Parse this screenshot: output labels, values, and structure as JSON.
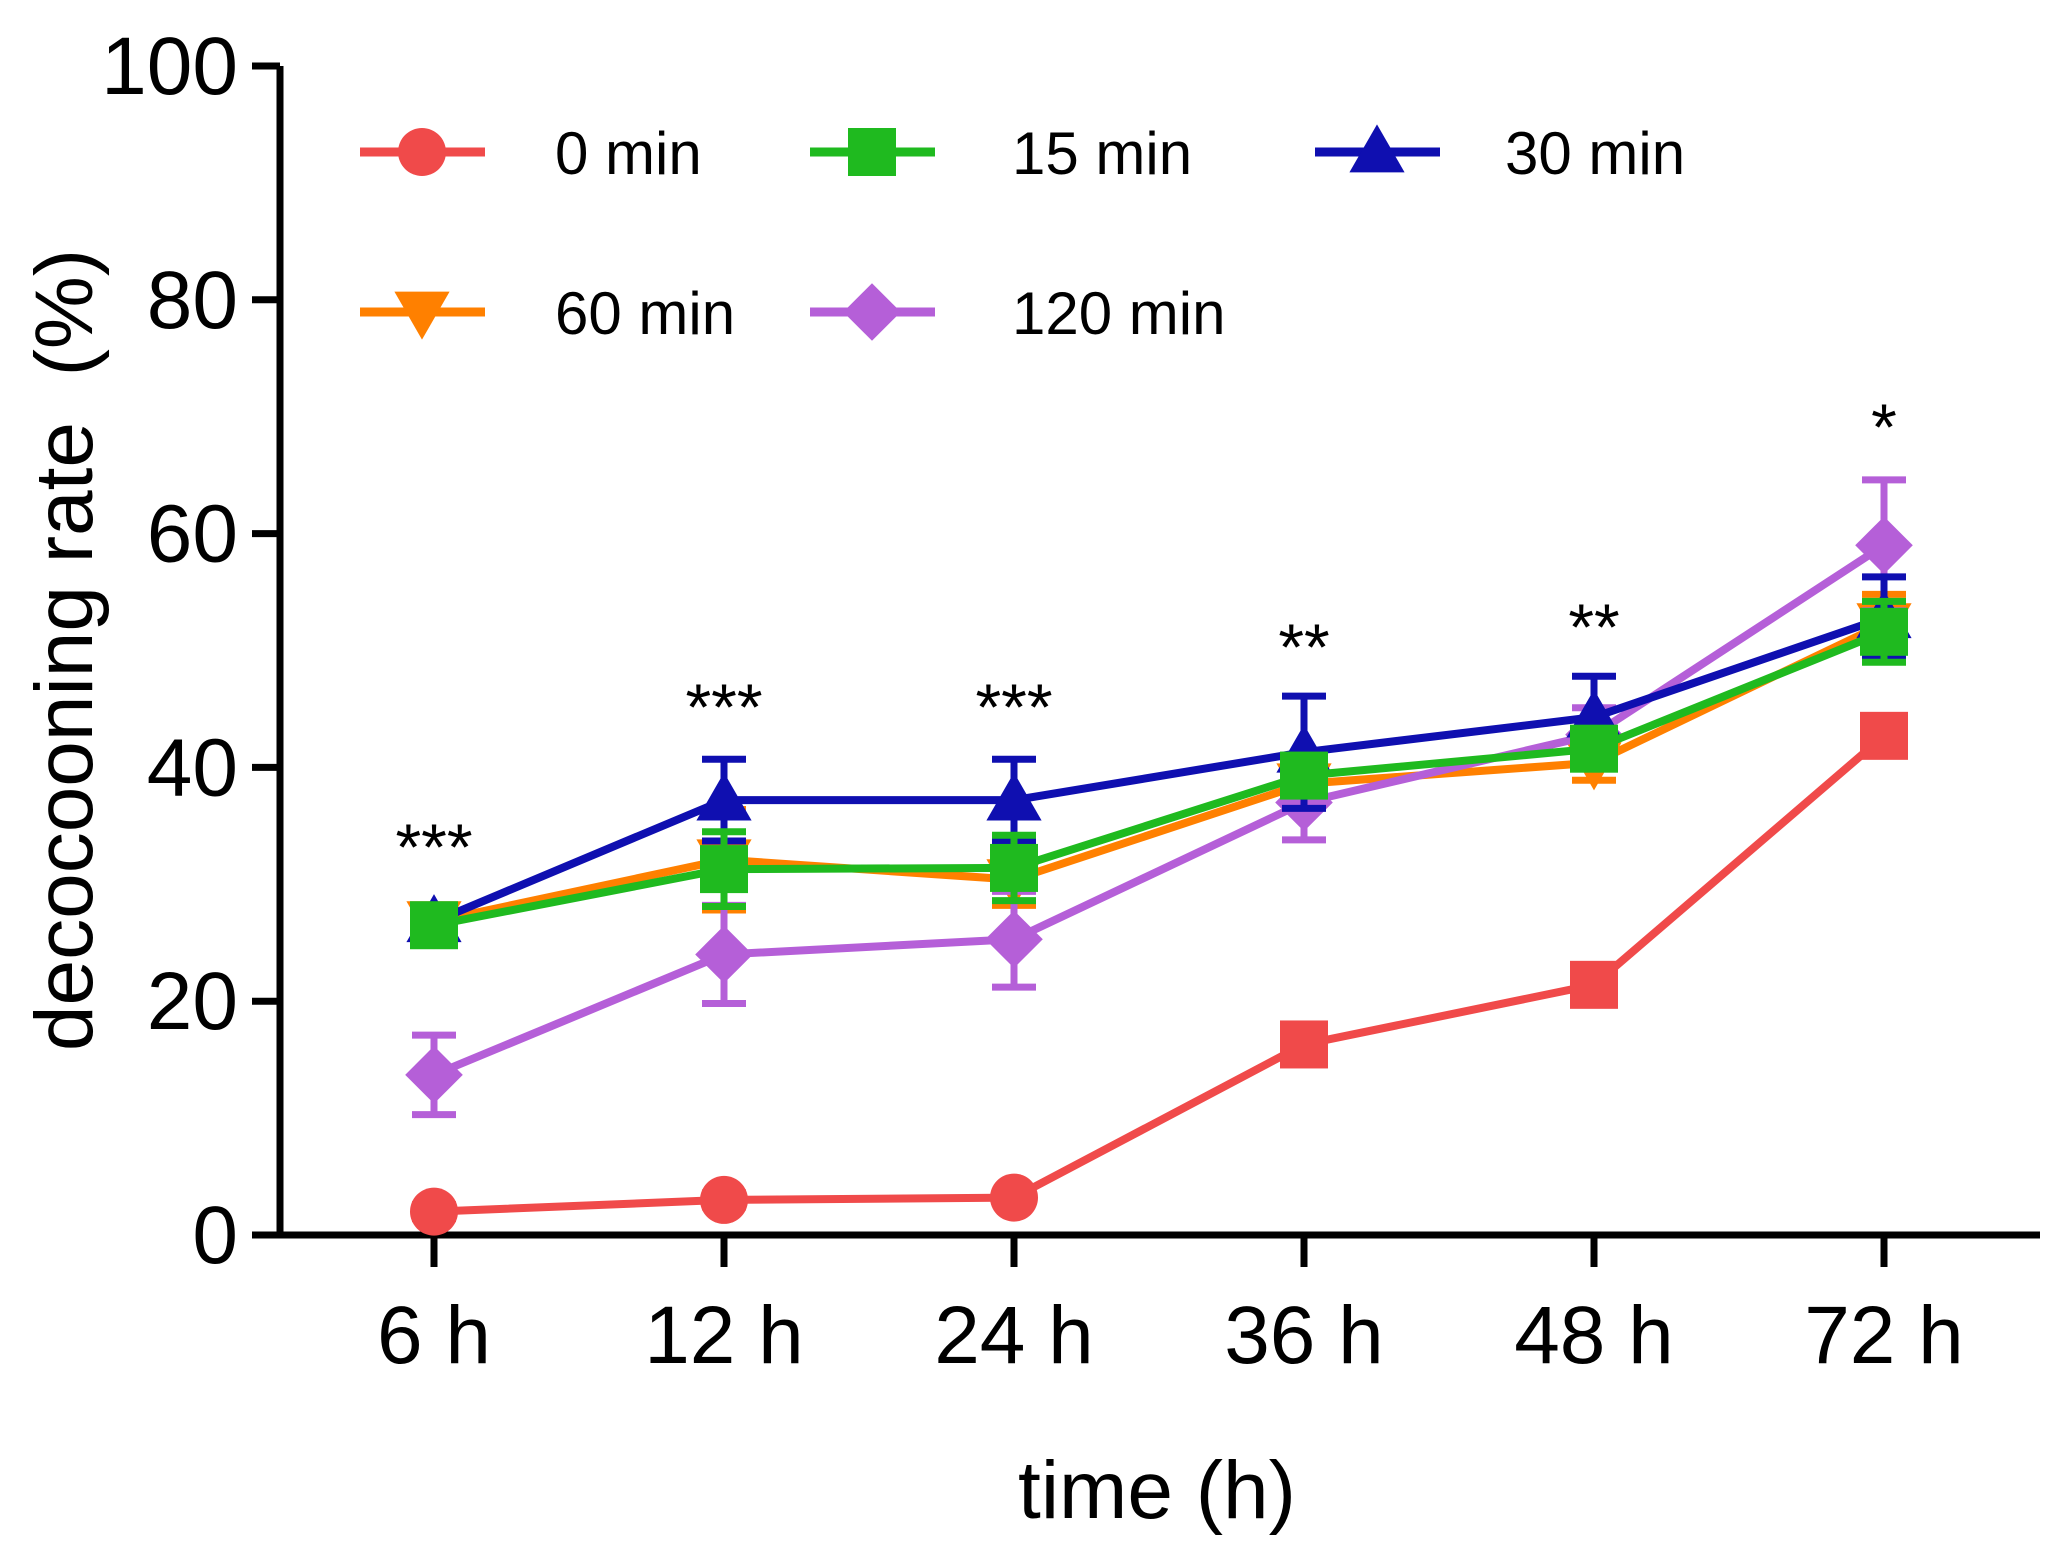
{
  "chart_data": {
    "type": "line",
    "title": "",
    "xlabel": "time (h)",
    "ylabel": "decocooning rate  (%)",
    "categories": [
      "6 h",
      "12 h",
      "24 h",
      "36 h",
      "48 h",
      "72 h"
    ],
    "ylim": [
      0,
      100
    ],
    "yticks": [
      "0",
      "20",
      "40",
      "60",
      "80",
      "100"
    ],
    "grid": false,
    "legend_position": "top-left",
    "series": [
      {
        "name": "0 min",
        "color": "#f04a4a",
        "marker": "circle-then-square",
        "values": [
          2,
          3,
          3.2,
          16.3,
          21.4,
          42.7
        ],
        "errors": [
          0.6,
          0.6,
          0.5,
          1.5,
          1.2,
          1.5
        ]
      },
      {
        "name": "15 min",
        "color": "#1fba1f",
        "marker": "square",
        "values": [
          26.5,
          31.3,
          31.4,
          39.3,
          41.6,
          51.6
        ],
        "errors": [
          0.7,
          3.2,
          2.8,
          1.5,
          1.6,
          2.6
        ]
      },
      {
        "name": "30 min",
        "color": "#0f0fb0",
        "marker": "triangle-up",
        "values": [
          26.8,
          37.2,
          37.2,
          41.3,
          44.3,
          52.8
        ],
        "errors": [
          0.5,
          3.5,
          3.5,
          4.8,
          3.5,
          3.5
        ]
      },
      {
        "name": "60 min",
        "color": "#ff8000",
        "marker": "triangle-down",
        "values": [
          26.8,
          32.1,
          30.4,
          38.6,
          40.4,
          52.3
        ],
        "errors": [
          0.5,
          4.3,
          2.2,
          1.8,
          1.5,
          2.5
        ]
      },
      {
        "name": "120 min",
        "color": "#b55fd8",
        "marker": "diamond",
        "values": [
          13.7,
          24,
          25.3,
          37,
          42.8,
          59
        ],
        "errors": [
          3.4,
          4.2,
          4.1,
          3.2,
          2.3,
          5.6
        ]
      }
    ],
    "annotations": [
      "***",
      "***",
      "***",
      "**",
      "**",
      "*"
    ]
  }
}
